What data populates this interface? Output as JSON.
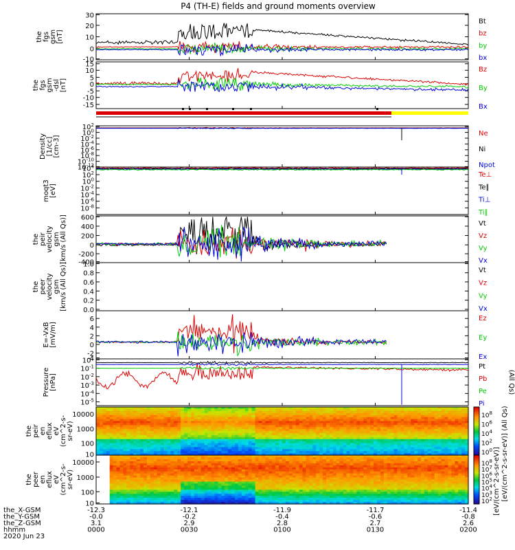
{
  "title": "P4 (TH-E) fields and ground moments overview",
  "colors": {
    "black": "#000000",
    "red": "#dd0000",
    "green": "#00cc00",
    "blue": "#0000dd",
    "yellow": "#ffff00"
  },
  "chart_data": [
    {
      "type": "line",
      "ylabel": [
        "the",
        "fgs",
        "gsm",
        "[nT]"
      ],
      "ylim": [
        -10,
        30
      ],
      "yticks": [
        "30",
        "20",
        "10",
        "0",
        "-10"
      ],
      "yscale": "linear",
      "series": [
        {
          "name": "Bt",
          "color": "black",
          "level": 5
        },
        {
          "name": "bz",
          "color": "red",
          "level": 1
        },
        {
          "name": "by",
          "color": "green",
          "level": -1
        },
        {
          "name": "bx",
          "color": "blue",
          "level": -2
        }
      ],
      "x_range": [
        "0000",
        "0200"
      ]
    },
    {
      "type": "line",
      "ylabel": [
        "the",
        "fgs",
        "gsm",
        "-dsl",
        "[nT]"
      ],
      "ylim": [
        -17,
        17
      ],
      "yticks": [
        "15",
        "10",
        "5",
        "0",
        "-5",
        "-10",
        "-15"
      ],
      "yscale": "linear",
      "series": [
        {
          "name": "Bz",
          "color": "red",
          "level": 4
        },
        {
          "name": "By",
          "color": "green",
          "level": 0
        },
        {
          "name": "Bx",
          "color": "blue",
          "level": -1
        }
      ]
    },
    {
      "type": "line",
      "ylabel": [
        "Density",
        "[1/cc]",
        "[cm-3]"
      ],
      "yticks": [
        "10^2",
        "10^0",
        "10^-2",
        "10^-4",
        "10^-6",
        "10^-8",
        "10^-10",
        "10^-12"
      ],
      "yscale": "log",
      "series": [
        {
          "name": "Ne",
          "color": "red"
        },
        {
          "name": "Ni",
          "color": "black"
        },
        {
          "name": "Npot",
          "color": "blue"
        }
      ]
    },
    {
      "type": "line",
      "ylabel": [
        "moqt3",
        "[eV]"
      ],
      "yticks": [
        "10^4",
        "10^2",
        "10^0",
        "10^-2",
        "10^-4",
        "10^-6",
        "10^-8"
      ],
      "yscale": "log",
      "series": [
        {
          "name": "Te⊥",
          "color": "red"
        },
        {
          "name": "Te∥",
          "color": "black"
        },
        {
          "name": "Ti⊥",
          "color": "blue"
        },
        {
          "name": "Ti∥",
          "color": "green"
        }
      ]
    },
    {
      "type": "line",
      "ylabel": [
        "the",
        "peir",
        "velocity",
        "gsm",
        "[km/s (All Qs)]"
      ],
      "ylim": [
        -400,
        600
      ],
      "yticks": [
        "600",
        "400",
        "200",
        "0",
        "-200",
        "-400"
      ],
      "yscale": "linear",
      "series": [
        {
          "name": "Vt",
          "color": "black"
        },
        {
          "name": "Vz",
          "color": "red"
        },
        {
          "name": "Vy",
          "color": "green"
        },
        {
          "name": "Vx",
          "color": "blue"
        }
      ]
    },
    {
      "type": "line",
      "ylabel": [
        "the",
        "peer",
        "velocity",
        "gsm",
        "[km/s (All Qs)]"
      ],
      "ylim": [
        0,
        1
      ],
      "yticks": [
        "1.0",
        "0.8",
        "0.6",
        "0.4",
        "0.2",
        "0.0"
      ],
      "yscale": "linear",
      "series": [
        {
          "name": "Vt",
          "color": "black"
        },
        {
          "name": "Vz",
          "color": "red"
        },
        {
          "name": "Vy",
          "color": "green"
        },
        {
          "name": "Vx",
          "color": "blue"
        }
      ]
    },
    {
      "type": "line",
      "ylabel": [
        "E=-VxB",
        "[mV/m]"
      ],
      "ylim": [
        -4,
        7
      ],
      "yticks": [
        "6",
        "4",
        "2",
        "0",
        "-2",
        "-4"
      ],
      "yscale": "linear",
      "series": [
        {
          "name": "Ez",
          "color": "red"
        },
        {
          "name": "Ey",
          "color": "green"
        },
        {
          "name": "Ex",
          "color": "blue"
        }
      ]
    },
    {
      "type": "line",
      "ylabel": [
        "Pressure",
        "[nPa]"
      ],
      "yticks": [
        "10^1",
        "10^-1",
        "10^-2",
        "10^-3",
        "10^-4",
        "10^-5"
      ],
      "yscale": "log",
      "legend_suffix": "(All Qs)",
      "series": [
        {
          "name": "Pt",
          "color": "black"
        },
        {
          "name": "Pb",
          "color": "red"
        },
        {
          "name": "Pe",
          "color": "green"
        },
        {
          "name": "Pi",
          "color": "blue"
        }
      ]
    },
    {
      "type": "heatmap",
      "ylabel": [
        "the",
        "peir",
        "en",
        "eflux",
        "eV",
        "(cm^2-s-",
        "sr-eV)"
      ],
      "yticks": [
        "10000",
        "1000",
        "100",
        "10"
      ],
      "yscale": "log",
      "colorbar_ticks": [
        "10^8",
        "10^6",
        "10^4",
        "10^2",
        "10^0"
      ]
    },
    {
      "type": "heatmap",
      "ylabel": [
        "the",
        "peer",
        "en",
        "eflux",
        "eV",
        "(cm^2-s-",
        "sr-eV)"
      ],
      "yticks": [
        "10000",
        "1000",
        "100",
        "10"
      ],
      "yscale": "log",
      "colorbar_ticks": [
        "10^8",
        "10^7",
        "10^6",
        "10^5",
        "10^4",
        "10^3",
        "10^2"
      ]
    }
  ],
  "colorbar_label": "[eV/(cm^2-s-sr-eV)] (All Qs)",
  "colorbar_label_2": "[eV/(cm^2-s-sr-eV)]",
  "footer": {
    "rows": [
      {
        "label": "the_X-GSM",
        "values": [
          "-12.3",
          "-12.1",
          "-11.9",
          "-11.7",
          "-11.4"
        ]
      },
      {
        "label": "the_Y-GSM",
        "values": [
          "-0.0",
          "-0.2",
          "-0.4",
          "-0.6",
          "-0.8"
        ]
      },
      {
        "label": "the_Z-GSM",
        "values": [
          "3.1",
          "2.9",
          "2.8",
          "2.7",
          "2.6"
        ]
      },
      {
        "label": "hhmm",
        "values": [
          "0000",
          "0030",
          "0100",
          "0130",
          "0200"
        ]
      }
    ],
    "date": "2020 Jun 23"
  }
}
